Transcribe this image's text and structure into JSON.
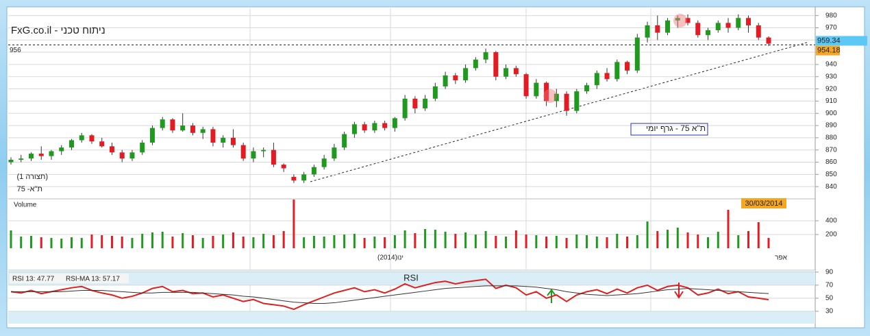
{
  "header": {
    "title": "FxG.co.il - ניתוח טכני"
  },
  "chart_data": [
    {
      "type": "candlestick",
      "title": "ת\"א 75 - גרף יומי",
      "labels": [
        "(תצורה 1)",
        "ת\"א- 75"
      ],
      "open": [
        860,
        862,
        863,
        867,
        865,
        869,
        872,
        878,
        882,
        877,
        873,
        868,
        863,
        868,
        876,
        888,
        895,
        886,
        890,
        884,
        887,
        876,
        880,
        874,
        863,
        869,
        870,
        858,
        848,
        845,
        850,
        856,
        863,
        872,
        883,
        891,
        886,
        892,
        888,
        896,
        912,
        904,
        912,
        922,
        931,
        927,
        937,
        944,
        950,
        930,
        937,
        932,
        914,
        925,
        910,
        916,
        902,
        918,
        923,
        933,
        928,
        942,
        935,
        962,
        972,
        966,
        976,
        978,
        974,
        964,
        968,
        974,
        970,
        978,
        972,
        962
      ],
      "high": [
        864,
        866,
        868,
        873,
        870,
        874,
        879,
        884,
        883,
        880,
        876,
        870,
        870,
        878,
        890,
        897,
        896,
        900,
        892,
        889,
        889,
        882,
        887,
        876,
        872,
        872,
        876,
        859,
        850,
        852,
        858,
        866,
        875,
        885,
        893,
        893,
        894,
        894,
        897,
        915,
        914,
        915,
        925,
        934,
        933,
        940,
        946,
        953,
        951,
        940,
        939,
        933,
        928,
        926,
        920,
        918,
        920,
        925,
        935,
        937,
        944,
        943,
        965,
        975,
        980,
        978,
        980,
        981,
        976,
        970,
        976,
        978,
        981,
        980,
        974,
        963
      ],
      "low": [
        858,
        860,
        861,
        862,
        862,
        866,
        870,
        876,
        875,
        872,
        866,
        860,
        861,
        866,
        874,
        886,
        884,
        885,
        882,
        879,
        873,
        872,
        872,
        861,
        860,
        864,
        856,
        852,
        843,
        843,
        848,
        854,
        861,
        870,
        880,
        884,
        884,
        886,
        885,
        894,
        900,
        902,
        910,
        920,
        924,
        925,
        935,
        941,
        927,
        928,
        930,
        912,
        912,
        906,
        905,
        898,
        900,
        916,
        920,
        926,
        926,
        932,
        933,
        958,
        960,
        964,
        970,
        972,
        962,
        960,
        966,
        966,
        968,
        966,
        960,
        955
      ],
      "close": [
        862,
        863,
        867,
        865,
        869,
        872,
        878,
        882,
        877,
        873,
        868,
        863,
        868,
        876,
        888,
        895,
        886,
        890,
        884,
        887,
        876,
        880,
        874,
        863,
        869,
        870,
        858,
        855,
        845,
        850,
        856,
        863,
        872,
        883,
        891,
        886,
        892,
        888,
        896,
        912,
        904,
        912,
        922,
        931,
        927,
        937,
        944,
        950,
        930,
        937,
        932,
        914,
        925,
        910,
        916,
        902,
        918,
        923,
        933,
        928,
        942,
        935,
        962,
        972,
        966,
        976,
        978,
        974,
        964,
        968,
        974,
        970,
        978,
        972,
        962,
        957
      ],
      "up_color": "#1f9a1f",
      "down_color": "#e31b23",
      "ylim": [
        830,
        986
      ],
      "yticks": [
        840,
        850,
        860,
        870,
        880,
        890,
        900,
        910,
        920,
        930,
        940,
        950,
        960,
        970,
        980
      ],
      "hline": 956,
      "price_labels": [
        959.34,
        954.18
      ],
      "date_label": "30/03/2014",
      "x_labels": [
        "(2014)ינו",
        "אפר"
      ]
    },
    {
      "type": "bar",
      "title": "Volume",
      "values": [
        260,
        170,
        180,
        160,
        150,
        140,
        160,
        150,
        200,
        190,
        180,
        170,
        150,
        210,
        230,
        240,
        170,
        220,
        190,
        150,
        180,
        200,
        230,
        170,
        160,
        210,
        190,
        250,
        710,
        160,
        180,
        170,
        190,
        200,
        210,
        150,
        170,
        160,
        190,
        260,
        220,
        280,
        270,
        240,
        210,
        230,
        200,
        250,
        180,
        170,
        260,
        200,
        190,
        170,
        180,
        150,
        200,
        190,
        170,
        160,
        210,
        170,
        190,
        390,
        250,
        270,
        300,
        230,
        200,
        160,
        240,
        560,
        190,
        250,
        380,
        150
      ],
      "ylim": [
        0,
        720
      ],
      "yticks": [
        200,
        400
      ]
    },
    {
      "type": "line",
      "title": "RSI",
      "series": [
        {
          "name": "RSI 13: 47.77",
          "color": "#e01e1e",
          "values": [
            60,
            58,
            62,
            57,
            60,
            63,
            66,
            68,
            62,
            58,
            55,
            50,
            53,
            58,
            65,
            68,
            60,
            62,
            57,
            58,
            52,
            55,
            50,
            45,
            48,
            42,
            40,
            38,
            33,
            40,
            46,
            52,
            58,
            62,
            66,
            60,
            63,
            58,
            64,
            72,
            66,
            70,
            74,
            76,
            72,
            75,
            77,
            79,
            65,
            70,
            66,
            55,
            60,
            50,
            55,
            45,
            55,
            60,
            63,
            57,
            64,
            58,
            66,
            70,
            62,
            68,
            70,
            66,
            55,
            58,
            64,
            57,
            60,
            52,
            50,
            47.77
          ]
        },
        {
          "name": "RSI-MA 13: 57.17",
          "color": "#333333",
          "values": [
            60,
            60,
            60,
            60,
            60,
            60,
            61,
            62,
            62,
            62,
            61,
            60,
            59,
            58,
            58,
            59,
            59,
            59,
            59,
            58,
            57,
            56,
            55,
            53,
            52,
            50,
            48,
            46,
            44,
            43,
            42,
            42,
            43,
            45,
            47,
            49,
            51,
            53,
            55,
            57,
            59,
            61,
            63,
            65,
            66,
            67,
            68,
            69,
            69,
            69,
            69,
            68,
            67,
            65,
            63,
            60,
            58,
            56,
            55,
            54,
            55,
            56,
            57,
            59,
            61,
            63,
            64,
            65,
            64,
            63,
            62,
            61,
            60,
            59,
            58,
            57.17
          ]
        }
      ],
      "ylim": [
        11,
        93
      ],
      "yticks": [
        30,
        50,
        70,
        90
      ]
    }
  ]
}
